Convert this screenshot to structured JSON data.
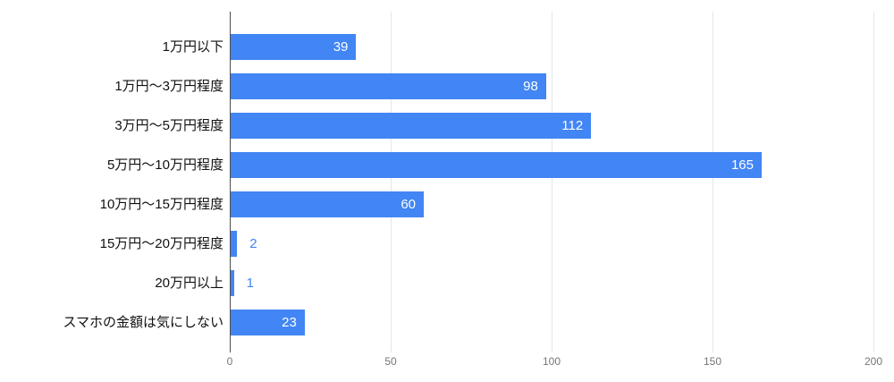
{
  "chart_data": {
    "type": "bar",
    "orientation": "horizontal",
    "title": "",
    "xlabel": "",
    "ylabel": "",
    "categories": [
      "1万円以下",
      "1万円〜3万円程度",
      "3万円〜5万円程度",
      "5万円〜10万円程度",
      "10万円〜15万円程度",
      "15万円〜20万円程度",
      "20万円以上",
      "スマホの金額は気にしない"
    ],
    "values": [
      39,
      98,
      112,
      165,
      60,
      2,
      1,
      23
    ],
    "x_ticks": [
      0,
      50,
      100,
      150,
      200
    ],
    "xlim": [
      0,
      200
    ],
    "grid": true,
    "legend": "none",
    "colors": {
      "bar": "#4285f4",
      "value_label_inside": "#ffffff",
      "value_label_outside": "#4285f4",
      "category_label": "#111111",
      "tick_label": "#757575",
      "axis_line": "#4d4d4d",
      "gridline": "#e6e6e6",
      "background": "#ffffff"
    }
  }
}
